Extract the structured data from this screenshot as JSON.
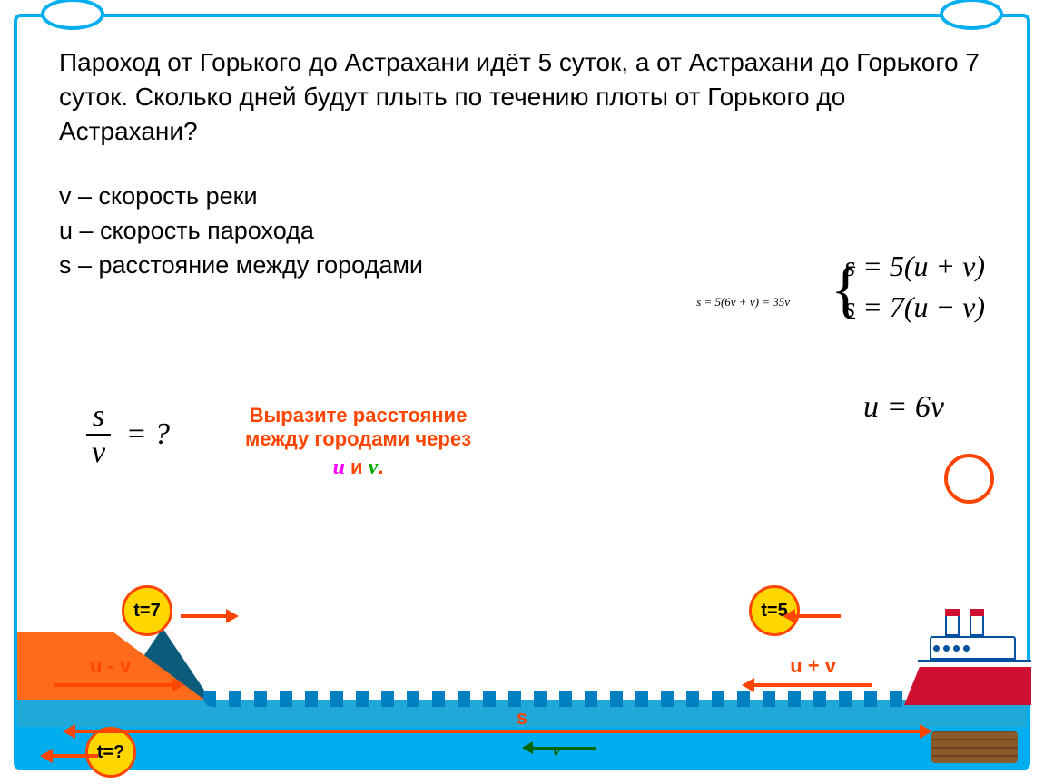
{
  "problem_text": "Пароход от Горького до Астрахани идёт 5 суток, а от Астрахани до Горького 7 суток. Сколько дней будут плыть по течению плоты от Горького до Астрахани?",
  "legend": {
    "v": "v – скорость реки",
    "u": "u – скорость парохода",
    "s": "s – расстояние между городами"
  },
  "equations": {
    "eq1": "s = 5(u + v)",
    "eq2": "s = 7(u − v)",
    "small": "s = 5(6v + v) = 35v",
    "result": "u = 6v"
  },
  "fraction": {
    "num": "s",
    "den": "v",
    "eq": "= ?"
  },
  "instruction": {
    "line1": "Выразите расстояние",
    "line2": "между городами через",
    "u": "u",
    "and": " и ",
    "v": "v",
    "dot": "."
  },
  "badges": {
    "t7": "t=7",
    "t5": "t=5",
    "tq": "t=?"
  },
  "arrows": {
    "umv": "u - v",
    "upv": "u + v",
    "s": "s",
    "v": "v"
  },
  "colors": {
    "frame": "#00aeef",
    "accent": "#ff4500",
    "badge_fill": "#ffd700",
    "sea": "#20a8d8",
    "land": "#ff6b1a",
    "peak": "#0d5b7a",
    "ship_hull": "#d01030",
    "green": "#006600",
    "magenta": "#ff00ff"
  }
}
